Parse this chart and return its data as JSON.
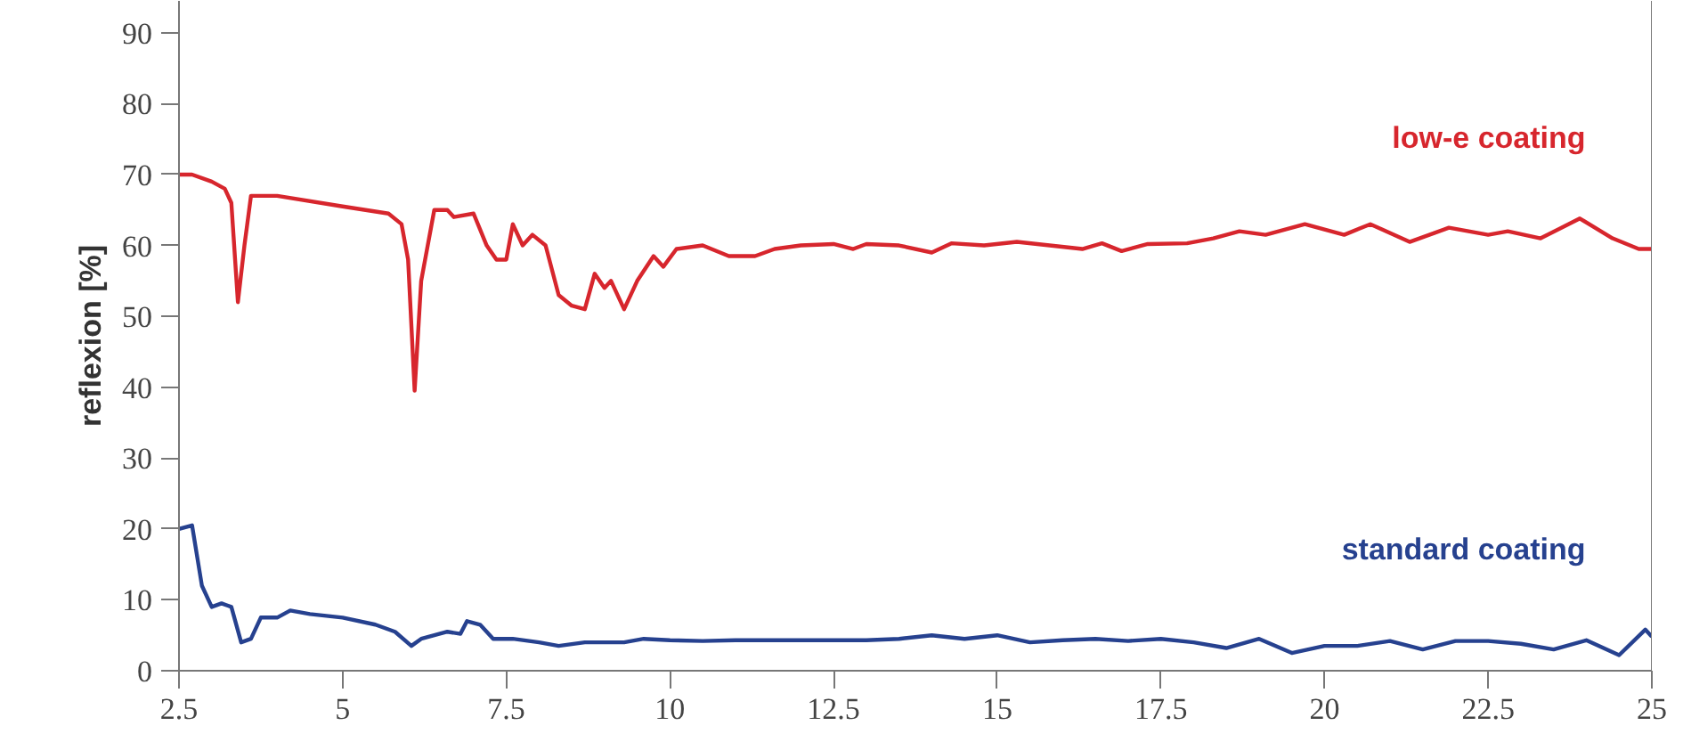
{
  "chart_data": {
    "type": "line",
    "ylabel": "reflexion [%]",
    "xlim": [
      2.5,
      25
    ],
    "ylim": [
      0,
      94.5
    ],
    "xticks": [
      2.5,
      5,
      7.5,
      10,
      12.5,
      15,
      17.5,
      20,
      22.5,
      25
    ],
    "yticks": [
      0,
      10,
      20,
      30,
      40,
      50,
      60,
      70,
      80,
      90
    ],
    "grid": false,
    "marker": "none",
    "line_style": "solid",
    "series": [
      {
        "name": "low-e coating",
        "color": "#d7262d",
        "x": [
          2.5,
          2.7,
          3.0,
          3.2,
          3.3,
          3.4,
          3.5,
          3.6,
          4,
          5,
          5.7,
          5.9,
          6.0,
          6.1,
          6.2,
          6.4,
          6.6,
          6.7,
          7.0,
          7.2,
          7.35,
          7.5,
          7.6,
          7.75,
          7.9,
          8.1,
          8.3,
          8.5,
          8.7,
          8.85,
          9.0,
          9.1,
          9.3,
          9.5,
          9.75,
          9.9,
          10.1,
          10.5,
          10.9,
          11.3,
          11.6,
          12,
          12.5,
          12.8,
          13,
          13.5,
          14,
          14.3,
          14.8,
          15.3,
          15.8,
          16.3,
          16.6,
          16.9,
          17.3,
          17.9,
          18.3,
          18.7,
          19.1,
          19.7,
          20.3,
          20.7,
          21.3,
          21.9,
          22.5,
          22.8,
          23.3,
          23.9,
          24.4,
          24.8,
          25
        ],
        "values": [
          70,
          70,
          69,
          68,
          66,
          52,
          60,
          67,
          67,
          65.5,
          64.5,
          63,
          58,
          39.5,
          55,
          65,
          65,
          64,
          64.5,
          60,
          58,
          58,
          63,
          60,
          61.5,
          60,
          53,
          51.5,
          51,
          56,
          54,
          55,
          51,
          55,
          58.5,
          57,
          59.5,
          60,
          58.5,
          58.5,
          59.5,
          60,
          60.2,
          59.5,
          60.2,
          60,
          59,
          60.3,
          60,
          60.5,
          60,
          59.5,
          60.3,
          59.2,
          60.2,
          60.3,
          61,
          62,
          61.5,
          63,
          61.5,
          63,
          60.5,
          62.5,
          61.5,
          62,
          61,
          63.8,
          61,
          59.5,
          59.5
        ]
      },
      {
        "name": "standard coating",
        "color": "#26418f",
        "x": [
          2.5,
          2.7,
          2.85,
          3.0,
          3.15,
          3.3,
          3.45,
          3.6,
          3.75,
          4,
          4.2,
          4.5,
          5,
          5.5,
          5.8,
          6.05,
          6.2,
          6.6,
          6.8,
          6.9,
          7.1,
          7.3,
          7.6,
          8.0,
          8.3,
          8.7,
          9.3,
          9.6,
          10,
          10.5,
          11,
          12,
          13,
          13.5,
          14,
          14.5,
          15,
          15.5,
          16,
          16.5,
          17,
          17.5,
          18,
          18.5,
          19,
          19.5,
          20,
          20.5,
          21,
          21.5,
          22,
          22.5,
          23,
          23.5,
          24,
          24.5,
          24.9,
          25
        ],
        "values": [
          20,
          20.5,
          12,
          9,
          9.5,
          9,
          4,
          4.5,
          7.5,
          7.5,
          8.5,
          8,
          7.5,
          6.5,
          5.5,
          3.5,
          4.5,
          5.5,
          5.2,
          7,
          6.5,
          4.5,
          4.5,
          4,
          3.5,
          4,
          4,
          4.5,
          4.3,
          4.2,
          4.3,
          4.3,
          4.3,
          4.5,
          5,
          4.5,
          5,
          4,
          4.3,
          4.5,
          4.2,
          4.5,
          4,
          3.2,
          4.5,
          2.5,
          3.5,
          3.5,
          4.2,
          3,
          4.2,
          4.2,
          3.8,
          3,
          4.3,
          2.2,
          5.8,
          4.8
        ]
      }
    ]
  }
}
